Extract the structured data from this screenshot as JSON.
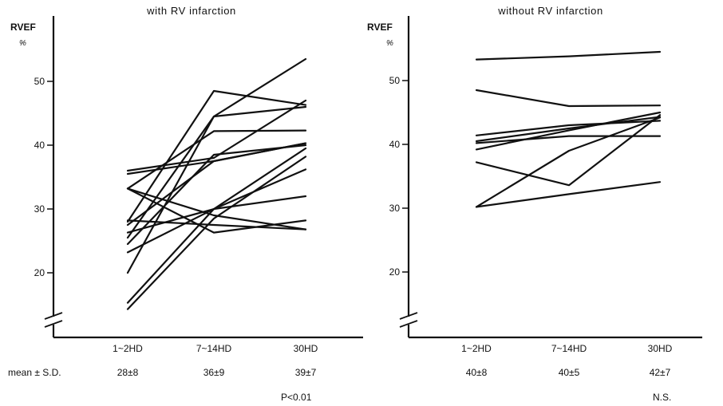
{
  "row_label": "mean ± S.D.",
  "chart_data": [
    {
      "type": "line",
      "title": "with RV infarction",
      "ylabel": "RVEF",
      "yunit": "%",
      "categories": [
        "1~2HD",
        "7~14HD",
        "30HD"
      ],
      "yticks": [
        20,
        30,
        40,
        50
      ],
      "ylim": [
        13,
        55
      ],
      "axis_break": true,
      "series": [
        {
          "values": [
            36.0,
            38.0,
            47.0
          ]
        },
        {
          "values": [
            35.5,
            37.5,
            40.3
          ]
        },
        {
          "values": [
            33.2,
            42.2,
            42.3
          ]
        },
        {
          "values": [
            33.2,
            29.0,
            26.8
          ]
        },
        {
          "values": [
            33.2,
            26.3,
            28.2
          ]
        },
        {
          "values": [
            28.0,
            48.5,
            46.3
          ]
        },
        {
          "values": [
            28.2,
            27.5,
            26.8
          ]
        },
        {
          "values": [
            27.5,
            37.5,
            40.3
          ]
        },
        {
          "values": [
            26.3,
            30.0,
            32.0
          ]
        },
        {
          "values": [
            25.5,
            44.5,
            53.5
          ]
        },
        {
          "values": [
            24.5,
            38.5,
            40.0
          ]
        },
        {
          "values": [
            23.2,
            30.0,
            36.2
          ]
        },
        {
          "values": [
            20.0,
            44.5,
            46.0
          ]
        },
        {
          "values": [
            15.3,
            30.0,
            39.5
          ]
        },
        {
          "values": [
            14.3,
            28.5,
            38.2
          ]
        }
      ],
      "stats": [
        "28±8",
        "36±9",
        "39±7"
      ],
      "significance": "P<0.01"
    },
    {
      "type": "line",
      "title": "without  RV infarction",
      "ylabel": "RVEF",
      "yunit": "%",
      "categories": [
        "1~2HD",
        "7~14HD",
        "30HD"
      ],
      "yticks": [
        20,
        30,
        40,
        50
      ],
      "ylim": [
        13,
        55
      ],
      "axis_break": true,
      "series": [
        {
          "values": [
            53.3,
            53.8,
            54.5
          ]
        },
        {
          "values": [
            48.5,
            46.0,
            46.1
          ]
        },
        {
          "values": [
            41.4,
            43.0,
            43.7
          ]
        },
        {
          "values": [
            40.5,
            42.5,
            44.3
          ]
        },
        {
          "values": [
            40.2,
            41.3,
            41.3
          ]
        },
        {
          "values": [
            39.2,
            42.2,
            45.0
          ]
        },
        {
          "values": [
            37.2,
            33.6,
            44.6
          ]
        },
        {
          "values": [
            30.2,
            39.0,
            44.2
          ]
        },
        {
          "values": [
            30.2,
            32.2,
            34.1
          ]
        }
      ],
      "stats": [
        "40±8",
        "40±5",
        "42±7"
      ],
      "significance": "N.S."
    }
  ]
}
